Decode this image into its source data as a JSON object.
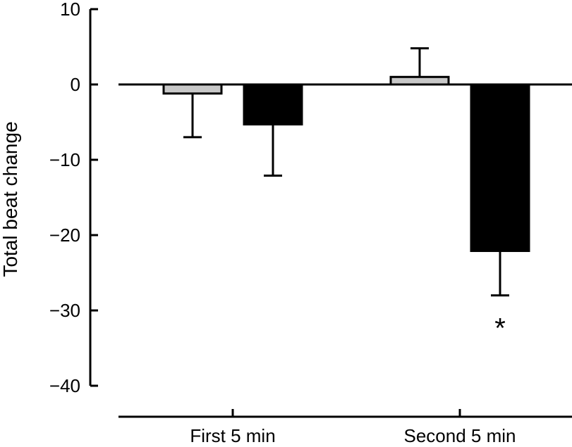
{
  "chart_data": {
    "type": "bar",
    "title": "",
    "xlabel": "",
    "ylabel": "Total beat change",
    "ylim": [
      -40,
      10
    ],
    "yticks": [
      10,
      0,
      -10,
      -20,
      -30,
      -40
    ],
    "ytick_labels": [
      "10",
      "0",
      "−10",
      "−20",
      "−30",
      "−40"
    ],
    "categories": [
      "First 5 min",
      "Second 5 min"
    ],
    "series": [
      {
        "color": "#c8c8c8",
        "values": [
          -1.2,
          1.0
        ],
        "error_plus": [
          0,
          3.8
        ],
        "error_minus": [
          5.8,
          0
        ]
      },
      {
        "color": "#000000",
        "values": [
          -5.3,
          -22.1
        ],
        "error_plus": [
          0,
          0
        ],
        "error_minus": [
          6.8,
          5.9
        ]
      }
    ],
    "annotations": [
      {
        "text": "*",
        "category": 1,
        "series": 1,
        "y": -31
      }
    ],
    "grid": false,
    "legend": "none"
  }
}
